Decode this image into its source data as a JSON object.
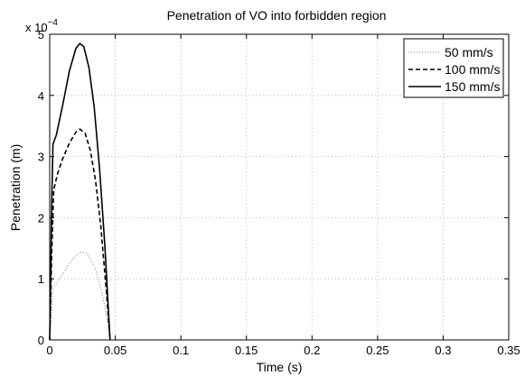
{
  "chart_data": {
    "type": "line",
    "title": "Penetration of VO into forbidden region",
    "xlabel": "Time (s)",
    "ylabel": "Penetration (m)",
    "xlim": [
      0,
      0.35
    ],
    "ylim": [
      0,
      5
    ],
    "x_ticks": [
      "0",
      "0.05",
      "0.1",
      "0.15",
      "0.2",
      "0.25",
      "0.3",
      "0.35"
    ],
    "y_ticks": [
      "0",
      "1",
      "2",
      "3",
      "4",
      "5"
    ],
    "y_multiplier": {
      "base": "x 10",
      "exponent": "−4"
    },
    "grid": true,
    "legend_position": "top-right",
    "series": [
      {
        "name": "50 mm/s",
        "line_style": "dotted",
        "color": "#888888",
        "points": [
          [
            0,
            0
          ],
          [
            0.0015,
            0.55
          ],
          [
            0.0025,
            0.85
          ],
          [
            0.005,
            0.92
          ],
          [
            0.01,
            1.08
          ],
          [
            0.015,
            1.25
          ],
          [
            0.02,
            1.38
          ],
          [
            0.024,
            1.44
          ],
          [
            0.028,
            1.42
          ],
          [
            0.032,
            1.3
          ],
          [
            0.036,
            1.08
          ],
          [
            0.04,
            0.75
          ],
          [
            0.044,
            0.32
          ],
          [
            0.046,
            0
          ]
        ]
      },
      {
        "name": "100 mm/s",
        "line_style": "dashed",
        "color": "#000000",
        "points": [
          [
            0,
            0
          ],
          [
            0.0015,
            1.4
          ],
          [
            0.003,
            2.45
          ],
          [
            0.006,
            2.72
          ],
          [
            0.01,
            2.97
          ],
          [
            0.015,
            3.22
          ],
          [
            0.02,
            3.4
          ],
          [
            0.023,
            3.45
          ],
          [
            0.027,
            3.38
          ],
          [
            0.031,
            3.1
          ],
          [
            0.035,
            2.6
          ],
          [
            0.039,
            1.85
          ],
          [
            0.043,
            0.85
          ],
          [
            0.046,
            0
          ]
        ]
      },
      {
        "name": "150 mm/s",
        "line_style": "solid",
        "color": "#000000",
        "points": [
          [
            0,
            0
          ],
          [
            0.0015,
            2.2
          ],
          [
            0.0025,
            3.2
          ],
          [
            0.005,
            3.35
          ],
          [
            0.01,
            3.85
          ],
          [
            0.015,
            4.4
          ],
          [
            0.02,
            4.77
          ],
          [
            0.023,
            4.85
          ],
          [
            0.026,
            4.8
          ],
          [
            0.03,
            4.45
          ],
          [
            0.034,
            3.8
          ],
          [
            0.038,
            2.8
          ],
          [
            0.042,
            1.55
          ],
          [
            0.046,
            0
          ]
        ]
      }
    ]
  }
}
